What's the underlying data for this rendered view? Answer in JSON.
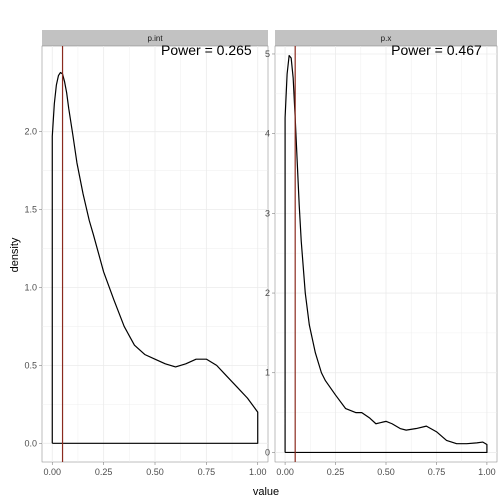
{
  "chart_data": {
    "type": "line",
    "xlabel": "value",
    "ylabel": "density",
    "colors": {
      "strip": "#c2c2c2",
      "grid": "#ebebeb",
      "density_line": "#000000",
      "reference_line": "#8b2a1e"
    },
    "panels": [
      {
        "strip_label": "p.int",
        "annotation": "Power =  0.265",
        "reference_x": 0.05,
        "xlim": [
          -0.05,
          1.05
        ],
        "ylim": [
          -0.12,
          2.55
        ],
        "x_ticks": [
          0,
          0.25,
          0.5,
          0.75,
          1
        ],
        "x_tick_labels": [
          "0.00",
          "0.25",
          "0.50",
          "0.75",
          "1.00"
        ],
        "y_ticks": [
          0,
          0.5,
          1,
          1.5,
          2
        ],
        "y_tick_labels": [
          "0.0",
          "0.5",
          "1.0",
          "1.5",
          "2.0"
        ],
        "series": [
          {
            "x": [
              0,
              0,
              0.01,
              0.02,
              0.03,
              0.04,
              0.05,
              0.06,
              0.07,
              0.08,
              0.1,
              0.12,
              0.15,
              0.18,
              0.2,
              0.25,
              0.3,
              0.35,
              0.4,
              0.45,
              0.5,
              0.55,
              0.6,
              0.65,
              0.7,
              0.75,
              0.8,
              0.85,
              0.9,
              0.95,
              1,
              1,
              0
            ],
            "y": [
              0,
              1.97,
              2.18,
              2.3,
              2.36,
              2.38,
              2.37,
              2.32,
              2.25,
              2.15,
              1.98,
              1.8,
              1.6,
              1.43,
              1.34,
              1.1,
              0.92,
              0.75,
              0.63,
              0.57,
              0.54,
              0.51,
              0.49,
              0.51,
              0.54,
              0.54,
              0.5,
              0.43,
              0.36,
              0.29,
              0.2,
              0,
              0
            ]
          }
        ]
      },
      {
        "strip_label": "p.x",
        "annotation": "Power =  0.467",
        "reference_x": 0.05,
        "xlim": [
          -0.05,
          1.05
        ],
        "ylim": [
          -0.12,
          5.1
        ],
        "x_ticks": [
          0,
          0.25,
          0.5,
          0.75,
          1
        ],
        "x_tick_labels": [
          "0.00",
          "0.25",
          "0.50",
          "0.75",
          "1.00"
        ],
        "y_ticks": [
          0,
          1,
          2,
          3,
          4,
          5
        ],
        "y_tick_labels": [
          "0",
          "1",
          "2",
          "3",
          "4",
          "5"
        ],
        "series": [
          {
            "x": [
              0,
              0,
              0.01,
              0.02,
              0.03,
              0.04,
              0.05,
              0.06,
              0.07,
              0.08,
              0.1,
              0.12,
              0.15,
              0.18,
              0.2,
              0.25,
              0.3,
              0.35,
              0.38,
              0.42,
              0.45,
              0.5,
              0.53,
              0.57,
              0.6,
              0.65,
              0.7,
              0.75,
              0.8,
              0.85,
              0.9,
              0.95,
              0.98,
              1,
              1,
              0
            ],
            "y": [
              0,
              4.2,
              4.75,
              4.98,
              4.95,
              4.7,
              4.2,
              3.65,
              3.1,
              2.65,
              2.0,
              1.6,
              1.25,
              1.0,
              0.9,
              0.72,
              0.55,
              0.5,
              0.5,
              0.43,
              0.36,
              0.39,
              0.36,
              0.3,
              0.28,
              0.3,
              0.33,
              0.26,
              0.15,
              0.11,
              0.11,
              0.12,
              0.13,
              0.1,
              0,
              0
            ]
          }
        ]
      }
    ]
  }
}
